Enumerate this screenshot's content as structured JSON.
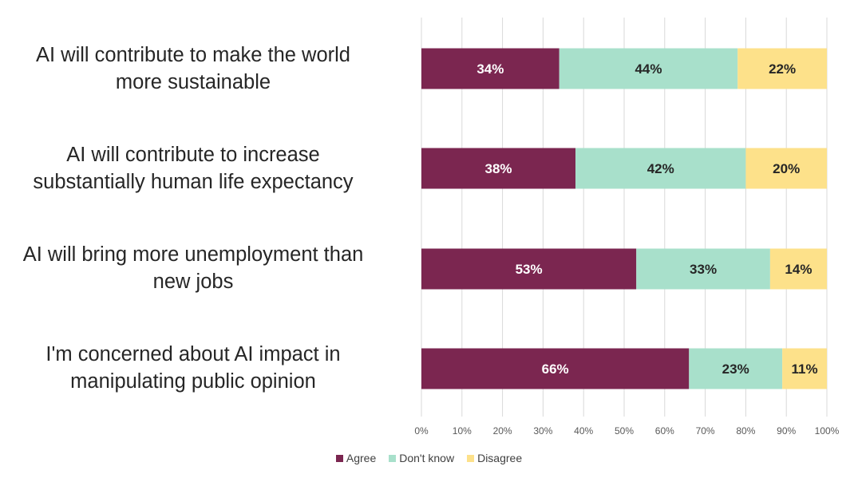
{
  "chart_data": {
    "type": "bar",
    "orientation": "horizontal",
    "stacked": true,
    "title": "",
    "categories": [
      "AI will contribute to make the world more sustainable",
      "AI will contribute to increase substantially human life expectancy",
      "AI will bring more unemployment than new jobs",
      "I'm concerned about AI impact in manipulating public opinion"
    ],
    "category_lines": [
      [
        "AI will contribute to make the world",
        "more sustainable"
      ],
      [
        "AI will contribute to increase",
        "substantially human life expectancy"
      ],
      [
        "AI will bring more unemployment than",
        "new jobs"
      ],
      [
        "I'm concerned about AI impact in",
        "manipulating public opinion"
      ]
    ],
    "series": [
      {
        "name": "Agree",
        "values": [
          34,
          38,
          53,
          66
        ],
        "color": "#7b2650",
        "label_color": "#ffffff"
      },
      {
        "name": "Don't know",
        "values": [
          44,
          42,
          33,
          23
        ],
        "color": "#a8e0cb",
        "label_color": "#262626"
      },
      {
        "name": "Disagree",
        "values": [
          22,
          20,
          14,
          11
        ],
        "color": "#fde18a",
        "label_color": "#262626"
      }
    ],
    "value_labels": [
      [
        "34%",
        "38%",
        "53%",
        "66%"
      ],
      [
        "44%",
        "42%",
        "33%",
        "23%"
      ],
      [
        "22%",
        "20%",
        "14%",
        "11%"
      ]
    ],
    "xlim": [
      0,
      100
    ],
    "xticks": [
      "0%",
      "10%",
      "20%",
      "30%",
      "40%",
      "50%",
      "60%",
      "70%",
      "80%",
      "90%",
      "100%"
    ],
    "xlabel": "",
    "ylabel": "",
    "grid": "vertical",
    "legend_position": "bottom",
    "gridline_color": "#d9d9d9"
  }
}
